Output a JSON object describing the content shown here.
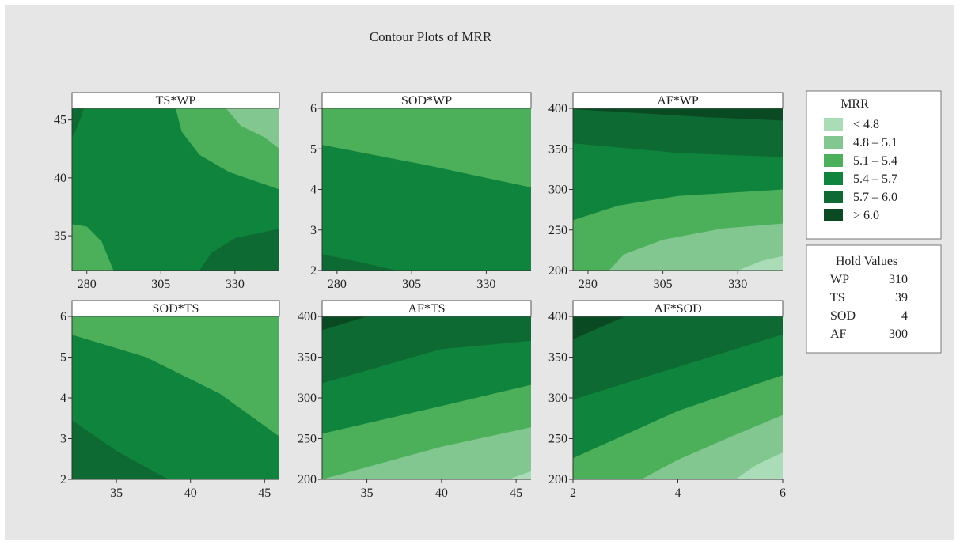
{
  "chart_data": {
    "type": "contour",
    "title": "Contour Plots of MRR",
    "response": "MRR",
    "legend": {
      "title": "MRR",
      "placement": "right",
      "entries": [
        {
          "label": "< 4.8",
          "color": "#a9dcb7"
        },
        {
          "label": "4.8 – 5.1",
          "color": "#81c78f"
        },
        {
          "label": "5.1 – 5.4",
          "color": "#4caf5a"
        },
        {
          "label": "5.4 – 5.7",
          "color": "#0f843d"
        },
        {
          "label": "5.7 – 6.0",
          "color": "#0c6a32"
        },
        {
          "label": "> 6.0",
          "color": "#0a4a22"
        }
      ]
    },
    "hold_values": {
      "title": "Hold Values",
      "items": [
        {
          "name": "WP",
          "value": "310"
        },
        {
          "name": "TS",
          "value": "39"
        },
        {
          "name": "SOD",
          "value": "4"
        },
        {
          "name": "AF",
          "value": "300"
        }
      ]
    },
    "panels": [
      {
        "title": "TS*WP",
        "xlim": [
          275,
          345
        ],
        "ylim": [
          32,
          46
        ],
        "xticks": [
          "280",
          "305",
          "330"
        ],
        "yticks": [
          "35",
          "40",
          "45"
        ],
        "xtickvals": [
          280,
          305,
          330
        ],
        "ytickvals": [
          35,
          40,
          45
        ],
        "regions": [
          {
            "level": 3,
            "poly": [
              [
                275,
                32
              ],
              [
                345,
                32
              ],
              [
                345,
                46
              ],
              [
                275,
                46
              ]
            ]
          },
          {
            "level": 2,
            "poly": [
              [
                310,
                46
              ],
              [
                312,
                44
              ],
              [
                318,
                42
              ],
              [
                328,
                40.5
              ],
              [
                345,
                39
              ],
              [
                345,
                46
              ]
            ]
          },
          {
            "level": 1,
            "poly": [
              [
                327,
                46
              ],
              [
                332,
                44.5
              ],
              [
                340,
                43.5
              ],
              [
                345,
                42.5
              ],
              [
                345,
                46
              ]
            ]
          },
          {
            "level": 2,
            "poly": [
              [
                275,
                36
              ],
              [
                280,
                35.8
              ],
              [
                285,
                34.5
              ],
              [
                289,
                32
              ],
              [
                275,
                32
              ]
            ]
          },
          {
            "level": 4,
            "poly": [
              [
                318,
                32
              ],
              [
                322,
                33.5
              ],
              [
                330,
                34.8
              ],
              [
                345,
                35.6
              ],
              [
                345,
                32
              ]
            ]
          },
          {
            "level": 4,
            "poly": [
              [
                275,
                46
              ],
              [
                279,
                46
              ],
              [
                277,
                44.5
              ],
              [
                275,
                43.5
              ]
            ]
          }
        ]
      },
      {
        "title": "SOD*WP",
        "xlim": [
          275,
          345
        ],
        "ylim": [
          2,
          6
        ],
        "xticks": [
          "280",
          "305",
          "330"
        ],
        "yticks": [
          "2",
          "3",
          "4",
          "5",
          "6"
        ],
        "xtickvals": [
          280,
          305,
          330
        ],
        "ytickvals": [
          2,
          3,
          4,
          5,
          6
        ],
        "regions": [
          {
            "level": 2,
            "poly": [
              [
                275,
                2
              ],
              [
                345,
                2
              ],
              [
                345,
                6
              ],
              [
                275,
                6
              ]
            ]
          },
          {
            "level": 3,
            "poly": [
              [
                275,
                2
              ],
              [
                345,
                2
              ],
              [
                345,
                4.05
              ],
              [
                310,
                4.6
              ],
              [
                275,
                5.1
              ]
            ]
          },
          {
            "level": 4,
            "poly": [
              [
                275,
                2
              ],
              [
                300,
                2
              ],
              [
                285,
                2.25
              ],
              [
                275,
                2.4
              ]
            ]
          }
        ]
      },
      {
        "title": "AF*WP",
        "xlim": [
          275,
          345
        ],
        "ylim": [
          200,
          400
        ],
        "xticks": [
          "280",
          "305",
          "330"
        ],
        "yticks": [
          "200",
          "250",
          "300",
          "350",
          "400"
        ],
        "xtickvals": [
          280,
          305,
          330
        ],
        "ytickvals": [
          200,
          250,
          300,
          350,
          400
        ],
        "regions": [
          {
            "level": 5,
            "poly": [
              [
                275,
                200
              ],
              [
                345,
                200
              ],
              [
                345,
                400
              ],
              [
                275,
                400
              ]
            ]
          },
          {
            "level": 4,
            "poly": [
              [
                275,
                200
              ],
              [
                345,
                200
              ],
              [
                345,
                385
              ],
              [
                320,
                389
              ],
              [
                275,
                399
              ]
            ]
          },
          {
            "level": 3,
            "poly": [
              [
                275,
                200
              ],
              [
                345,
                200
              ],
              [
                345,
                340
              ],
              [
                310,
                345
              ],
              [
                275,
                357
              ]
            ]
          },
          {
            "level": 2,
            "poly": [
              [
                275,
                200
              ],
              [
                345,
                200
              ],
              [
                345,
                300
              ],
              [
                310,
                292
              ],
              [
                290,
                280
              ],
              [
                275,
                262
              ]
            ]
          },
          {
            "level": 1,
            "poly": [
              [
                292,
                200
              ],
              [
                345,
                200
              ],
              [
                345,
                258
              ],
              [
                325,
                252
              ],
              [
                305,
                238
              ],
              [
                292,
                220
              ],
              [
                287,
                200
              ]
            ]
          },
          {
            "level": 0,
            "poly": [
              [
                330,
                200
              ],
              [
                345,
                200
              ],
              [
                345,
                218
              ],
              [
                338,
                212
              ]
            ]
          }
        ]
      },
      {
        "title": "SOD*TS",
        "xlim": [
          32,
          46
        ],
        "ylim": [
          2,
          6
        ],
        "xticks": [
          "35",
          "40",
          "45"
        ],
        "yticks": [
          "2",
          "3",
          "4",
          "5",
          "6"
        ],
        "xtickvals": [
          35,
          40,
          45
        ],
        "ytickvals": [
          2,
          3,
          4,
          5,
          6
        ],
        "regions": [
          {
            "level": 2,
            "poly": [
              [
                32,
                2
              ],
              [
                46,
                2
              ],
              [
                46,
                6
              ],
              [
                32,
                6
              ]
            ]
          },
          {
            "level": 3,
            "poly": [
              [
                32,
                2
              ],
              [
                46,
                2
              ],
              [
                46,
                3.05
              ],
              [
                42,
                4.1
              ],
              [
                37,
                5
              ],
              [
                32,
                5.55
              ]
            ]
          },
          {
            "level": 4,
            "poly": [
              [
                32,
                2
              ],
              [
                38.5,
                2
              ],
              [
                35,
                2.7
              ],
              [
                32,
                3.45
              ]
            ]
          }
        ]
      },
      {
        "title": "AF*TS",
        "xlim": [
          32,
          46
        ],
        "ylim": [
          200,
          400
        ],
        "xticks": [
          "35",
          "40",
          "45"
        ],
        "yticks": [
          "200",
          "250",
          "300",
          "350",
          "400"
        ],
        "xtickvals": [
          35,
          40,
          45
        ],
        "ytickvals": [
          200,
          250,
          300,
          350,
          400
        ],
        "regions": [
          {
            "level": 5,
            "poly": [
              [
                32,
                200
              ],
              [
                46,
                200
              ],
              [
                46,
                400
              ],
              [
                32,
                400
              ]
            ]
          },
          {
            "level": 4,
            "poly": [
              [
                32,
                200
              ],
              [
                46,
                200
              ],
              [
                46,
                400
              ],
              [
                35,
                400
              ],
              [
                32,
                383
              ]
            ]
          },
          {
            "level": 3,
            "poly": [
              [
                32,
                200
              ],
              [
                46,
                200
              ],
              [
                46,
                370
              ],
              [
                40,
                360
              ],
              [
                32,
                318
              ]
            ]
          },
          {
            "level": 2,
            "poly": [
              [
                32,
                200
              ],
              [
                46,
                200
              ],
              [
                46,
                316
              ],
              [
                40,
                290
              ],
              [
                32,
                256
              ]
            ]
          },
          {
            "level": 1,
            "poly": [
              [
                32,
                200
              ],
              [
                46,
                200
              ],
              [
                46,
                264
              ],
              [
                40,
                240
              ],
              [
                34,
                210
              ],
              [
                32,
                200
              ]
            ]
          },
          {
            "level": 0,
            "poly": [
              [
                44.5,
                200
              ],
              [
                46,
                200
              ],
              [
                46,
                210
              ]
            ]
          }
        ]
      },
      {
        "title": "AF*SOD",
        "xlim": [
          2,
          6
        ],
        "ylim": [
          200,
          400
        ],
        "xticks": [
          "2",
          "4",
          "6"
        ],
        "yticks": [
          "200",
          "250",
          "300",
          "350",
          "400"
        ],
        "xtickvals": [
          2,
          4,
          6
        ],
        "ytickvals": [
          200,
          250,
          300,
          350,
          400
        ],
        "regions": [
          {
            "level": 5,
            "poly": [
              [
                2,
                200
              ],
              [
                6,
                200
              ],
              [
                6,
                400
              ],
              [
                2,
                400
              ]
            ]
          },
          {
            "level": 4,
            "poly": [
              [
                2,
                200
              ],
              [
                6,
                200
              ],
              [
                6,
                400
              ],
              [
                3,
                400
              ],
              [
                2,
                372
              ]
            ]
          },
          {
            "level": 3,
            "poly": [
              [
                2,
                200
              ],
              [
                6,
                200
              ],
              [
                6,
                378
              ],
              [
                4,
                338
              ],
              [
                2,
                298
              ]
            ]
          },
          {
            "level": 2,
            "poly": [
              [
                2,
                200
              ],
              [
                6,
                200
              ],
              [
                6,
                328
              ],
              [
                4,
                284
              ],
              [
                2,
                226
              ]
            ]
          },
          {
            "level": 1,
            "poly": [
              [
                3.3,
                200
              ],
              [
                6,
                200
              ],
              [
                6,
                279
              ],
              [
                5,
                252
              ],
              [
                4,
                224
              ]
            ]
          },
          {
            "level": 0,
            "poly": [
              [
                5.1,
                200
              ],
              [
                6,
                200
              ],
              [
                6,
                233
              ],
              [
                5.5,
                218
              ]
            ]
          }
        ]
      }
    ]
  }
}
